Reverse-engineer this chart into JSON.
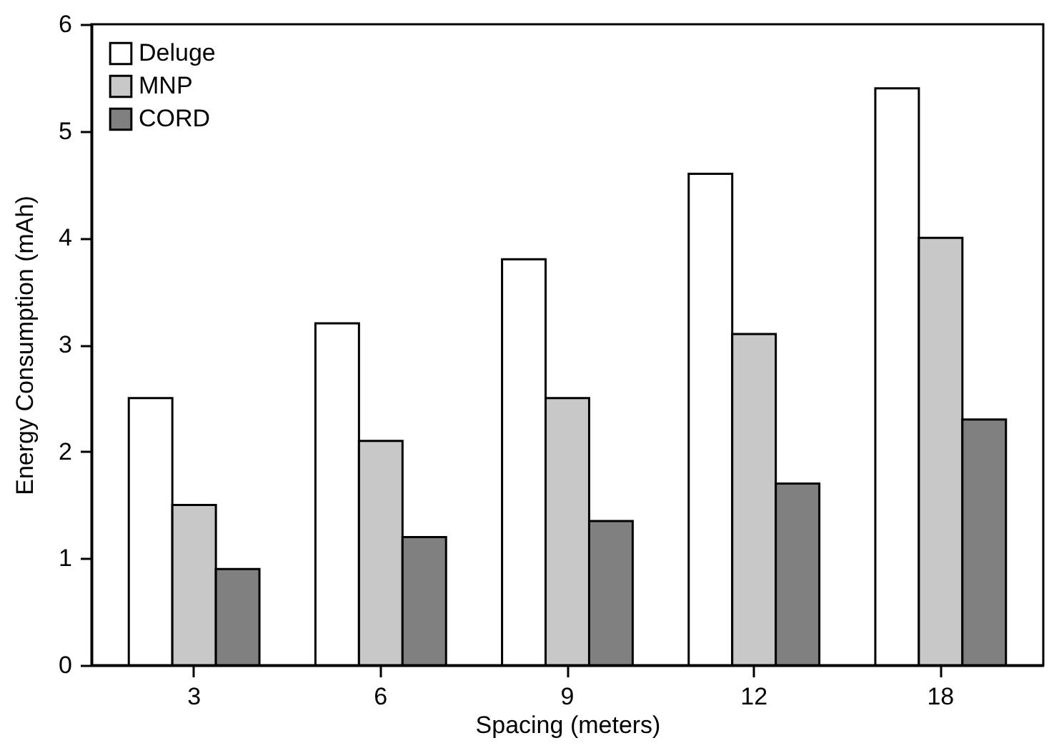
{
  "chart_data": {
    "type": "bar",
    "xlabel": "Spacing (meters)",
    "ylabel": "Energy Consumption (mAh)",
    "categories": [
      "3",
      "6",
      "9",
      "12",
      "18"
    ],
    "series": [
      {
        "name": "Deluge",
        "color": "#ffffff",
        "values": [
          2.5,
          3.2,
          3.8,
          4.6,
          5.4
        ]
      },
      {
        "name": "MNP",
        "color": "#c8c8c8",
        "values": [
          1.5,
          2.1,
          2.5,
          3.1,
          4.0
        ]
      },
      {
        "name": "CORD",
        "color": "#808080",
        "values": [
          0.9,
          1.2,
          1.35,
          1.7,
          2.3
        ]
      }
    ],
    "ylim": [
      0,
      6
    ],
    "yticks": [
      0,
      1,
      2,
      3,
      4,
      5,
      6
    ],
    "grid": false,
    "legend": "top left"
  }
}
